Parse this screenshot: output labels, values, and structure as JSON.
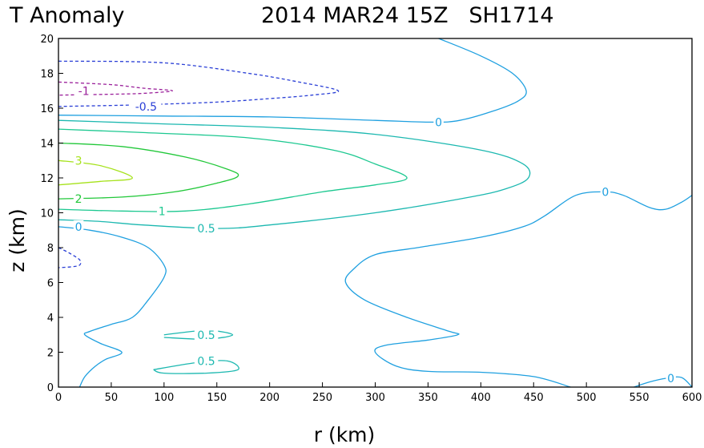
{
  "chart_data": {
    "type": "contour",
    "title_left": "T Anomaly",
    "title_right": "2014 MAR24 15Z   SH1714",
    "xlabel": "r (km)",
    "ylabel": "z (km)",
    "xlim": [
      0,
      600
    ],
    "ylim": [
      0,
      20
    ],
    "x_ticks": [
      "0",
      "50",
      "100",
      "150",
      "200",
      "250",
      "300",
      "350",
      "400",
      "450",
      "500",
      "550",
      "600"
    ],
    "y_ticks": [
      "0",
      "2",
      "4",
      "6",
      "8",
      "10",
      "12",
      "14",
      "16",
      "18",
      "20"
    ],
    "grid": false,
    "colors": {
      "-1": "#9a1f9a",
      "-0.5": "#2a3fd6",
      "0": "#1fa0e0",
      "0.5": "#1cb8b0",
      "1": "#1cc890",
      "2": "#22c83a",
      "3": "#a6e21c"
    },
    "contours": [
      {
        "level": "-1",
        "dashed": true,
        "points": [
          [
            0,
            17.5
          ],
          [
            50,
            17.35
          ],
          [
            80,
            17.15
          ],
          [
            108,
            17.0
          ],
          [
            80,
            16.85
          ],
          [
            50,
            16.8
          ],
          [
            0,
            16.75
          ]
        ]
      },
      {
        "level": "-0.5",
        "dashed": true,
        "points": [
          [
            0,
            18.7
          ],
          [
            100,
            18.6
          ],
          [
            180,
            18.0
          ],
          [
            228,
            17.5
          ],
          [
            265,
            17.0
          ],
          [
            240,
            16.75
          ],
          [
            200,
            16.55
          ],
          [
            150,
            16.35
          ],
          [
            80,
            16.2
          ],
          [
            0,
            16.1
          ]
        ]
      },
      {
        "level": "-0.5",
        "dashed": true,
        "points": [
          [
            0,
            8.0
          ],
          [
            10,
            7.7
          ],
          [
            20,
            7.3
          ],
          [
            20,
            7.0
          ],
          [
            12,
            6.9
          ],
          [
            0,
            6.85
          ]
        ]
      },
      {
        "level": "0",
        "dashed": false,
        "points": [
          [
            0,
            15.6
          ],
          [
            100,
            15.55
          ],
          [
            200,
            15.5
          ],
          [
            300,
            15.3
          ],
          [
            355,
            15.2
          ],
          [
            380,
            15.3
          ],
          [
            410,
            15.8
          ],
          [
            435,
            16.4
          ],
          [
            443,
            17.0
          ],
          [
            430,
            18.0
          ],
          [
            400,
            19.0
          ],
          [
            360,
            20.0
          ]
        ]
      },
      {
        "level": "0",
        "dashed": false,
        "points": [
          [
            0,
            9.2
          ],
          [
            30,
            9.0
          ],
          [
            60,
            8.6
          ],
          [
            85,
            8.0
          ],
          [
            100,
            7.0
          ],
          [
            100,
            6.3
          ],
          [
            85,
            5.0
          ],
          [
            70,
            4.0
          ],
          [
            50,
            3.6
          ],
          [
            30,
            3.2
          ],
          [
            25,
            3.0
          ],
          [
            40,
            2.5
          ],
          [
            60,
            2.0
          ],
          [
            45,
            1.6
          ],
          [
            35,
            1.2
          ],
          [
            25,
            0.6
          ],
          [
            20,
            0.0
          ]
        ]
      },
      {
        "level": "0",
        "dashed": false,
        "points": [
          [
            600,
            11.0
          ],
          [
            590,
            10.6
          ],
          [
            575,
            10.2
          ],
          [
            560,
            10.3
          ],
          [
            535,
            11.0
          ],
          [
            518,
            11.2
          ],
          [
            490,
            11.0
          ],
          [
            460,
            9.8
          ],
          [
            440,
            9.2
          ],
          [
            400,
            8.6
          ],
          [
            340,
            8.0
          ],
          [
            300,
            7.6
          ],
          [
            280,
            6.8
          ],
          [
            272,
            6.0
          ],
          [
            290,
            5.0
          ],
          [
            330,
            4.0
          ],
          [
            370,
            3.2
          ],
          [
            378,
            3.0
          ],
          [
            350,
            2.7
          ],
          [
            310,
            2.4
          ],
          [
            300,
            2.0
          ],
          [
            320,
            1.2
          ],
          [
            350,
            0.9
          ],
          [
            400,
            0.85
          ],
          [
            450,
            0.6
          ],
          [
            485,
            0.0
          ]
        ]
      },
      {
        "level": "0",
        "dashed": false,
        "points": [
          [
            545,
            0.0
          ],
          [
            560,
            0.3
          ],
          [
            575,
            0.5
          ],
          [
            590,
            0.55
          ],
          [
            600,
            0.0
          ]
        ]
      },
      {
        "level": "0.5",
        "dashed": false,
        "points": [
          [
            0,
            15.3
          ],
          [
            100,
            15.1
          ],
          [
            200,
            14.9
          ],
          [
            300,
            14.5
          ],
          [
            400,
            13.6
          ],
          [
            440,
            12.8
          ],
          [
            445,
            12.0
          ],
          [
            425,
            11.4
          ],
          [
            390,
            10.9
          ],
          [
            300,
            10.0
          ],
          [
            200,
            9.3
          ],
          [
            150,
            9.1
          ],
          [
            80,
            9.3
          ],
          [
            40,
            9.5
          ],
          [
            0,
            9.6
          ]
        ]
      },
      {
        "level": "0.5",
        "dashed": false,
        "points": [
          [
            100,
            3.0
          ],
          [
            140,
            3.25
          ],
          [
            165,
            3.0
          ],
          [
            140,
            2.75
          ],
          [
            100,
            2.85
          ]
        ]
      },
      {
        "level": "0.5",
        "dashed": false,
        "points": [
          [
            90,
            1.0
          ],
          [
            130,
            1.4
          ],
          [
            160,
            1.5
          ],
          [
            170,
            1.0
          ],
          [
            140,
            0.8
          ],
          [
            100,
            0.8
          ],
          [
            90,
            1.0
          ]
        ]
      },
      {
        "level": "1",
        "dashed": false,
        "points": [
          [
            0,
            14.8
          ],
          [
            80,
            14.6
          ],
          [
            180,
            14.3
          ],
          [
            260,
            13.6
          ],
          [
            300,
            12.8
          ],
          [
            330,
            12.0
          ],
          [
            300,
            11.6
          ],
          [
            250,
            11.2
          ],
          [
            180,
            10.5
          ],
          [
            120,
            10.1
          ],
          [
            60,
            10.1
          ],
          [
            0,
            10.2
          ]
        ]
      },
      {
        "level": "2",
        "dashed": false,
        "points": [
          [
            0,
            14.0
          ],
          [
            60,
            13.8
          ],
          [
            120,
            13.2
          ],
          [
            160,
            12.5
          ],
          [
            170,
            12.1
          ],
          [
            150,
            11.7
          ],
          [
            110,
            11.2
          ],
          [
            60,
            10.9
          ],
          [
            0,
            10.8
          ]
        ]
      },
      {
        "level": "3",
        "dashed": false,
        "points": [
          [
            0,
            13.0
          ],
          [
            40,
            12.7
          ],
          [
            70,
            12.0
          ],
          [
            40,
            11.8
          ],
          [
            0,
            11.6
          ]
        ]
      }
    ],
    "contour_labels": [
      {
        "text": "-1",
        "x": 24,
        "y": 17.0,
        "level": "-1"
      },
      {
        "text": "-0.5",
        "x": 83,
        "y": 16.1,
        "level": "-0.5"
      },
      {
        "text": "0",
        "x": 360,
        "y": 15.2,
        "level": "0"
      },
      {
        "text": "3",
        "x": 19,
        "y": 13.0,
        "level": "3"
      },
      {
        "text": "2",
        "x": 19,
        "y": 10.8,
        "level": "2"
      },
      {
        "text": "1",
        "x": 98,
        "y": 10.1,
        "level": "1"
      },
      {
        "text": "0",
        "x": 19,
        "y": 9.2,
        "level": "0"
      },
      {
        "text": "0.5",
        "x": 140,
        "y": 9.1,
        "level": "0.5"
      },
      {
        "text": "0",
        "x": 518,
        "y": 11.2,
        "level": "0"
      },
      {
        "text": "0.5",
        "x": 140,
        "y": 3.0,
        "level": "0.5"
      },
      {
        "text": "0.5",
        "x": 140,
        "y": 1.5,
        "level": "0.5"
      },
      {
        "text": "0",
        "x": 580,
        "y": 0.5,
        "level": "0"
      }
    ]
  }
}
